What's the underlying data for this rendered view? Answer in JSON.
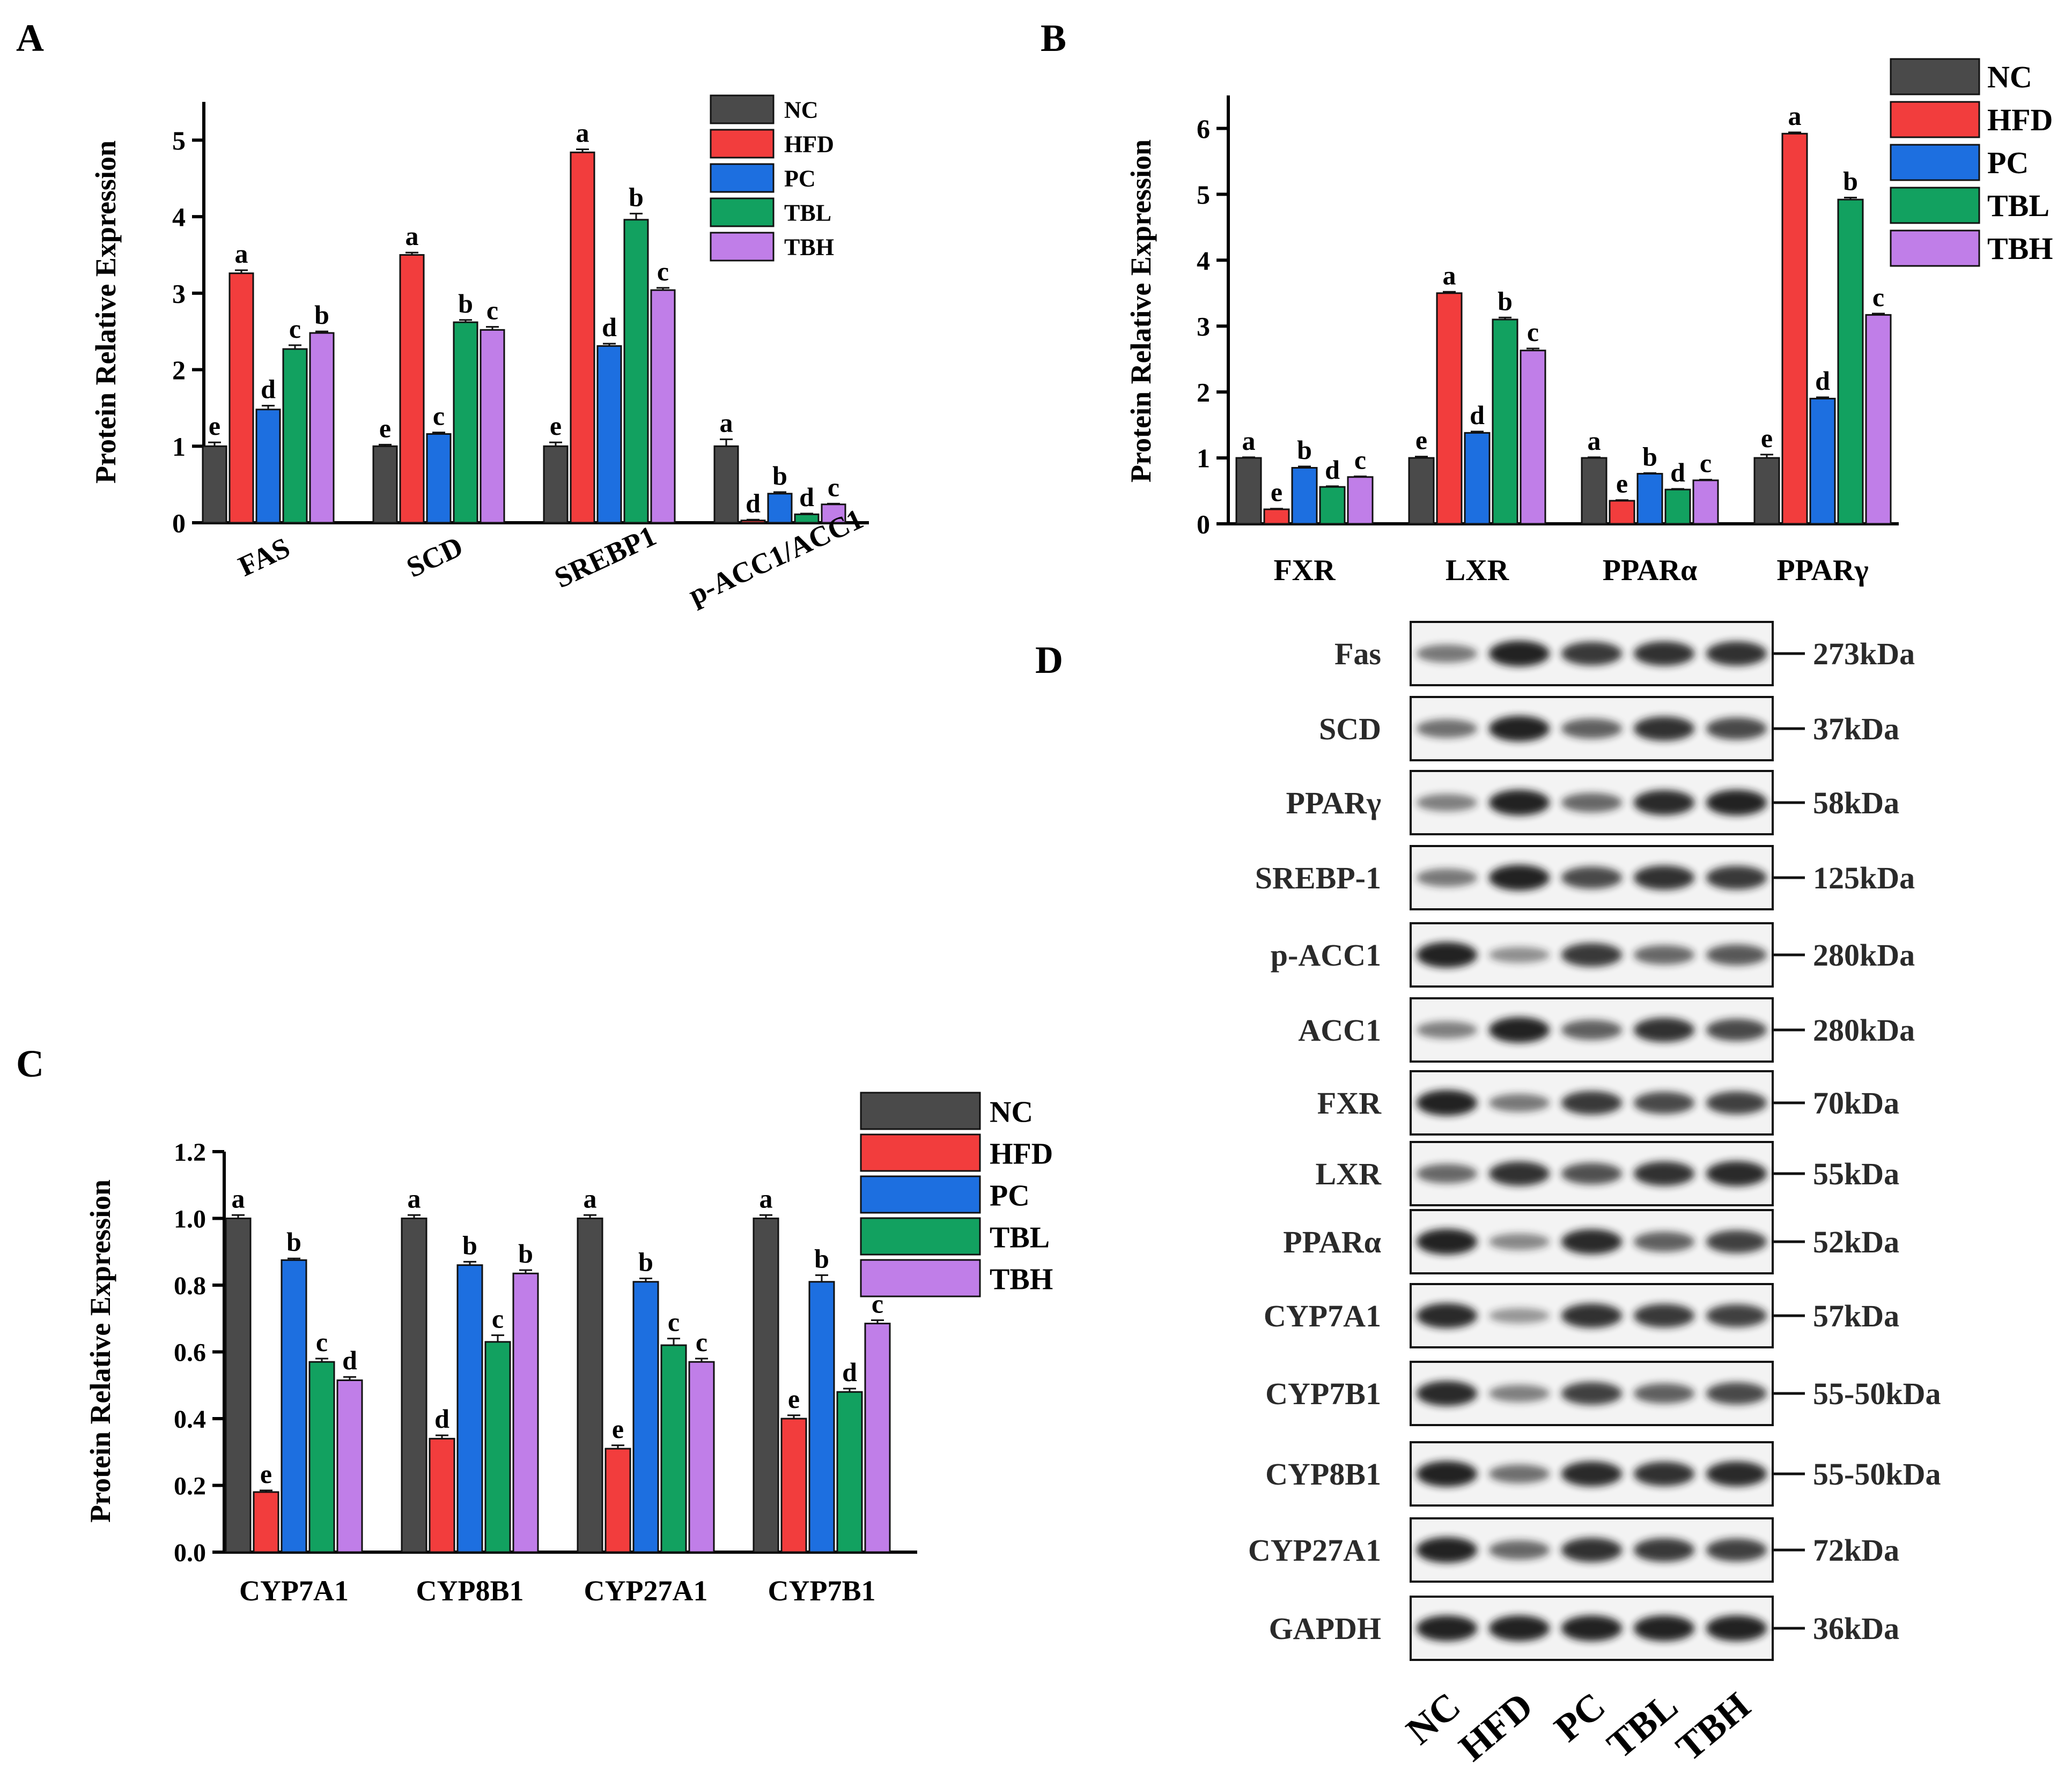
{
  "groups": [
    "NC",
    "HFD",
    "PC",
    "TBL",
    "TBH"
  ],
  "colors": {
    "NC": "#4a4a4a",
    "HFD": "#f23d3d",
    "PC": "#1d6fe0",
    "TBL": "#12a160",
    "TBH": "#c07ee8",
    "axis": "#000000"
  },
  "chart_data": [
    {
      "panel": "A",
      "type": "bar",
      "ylabel": "Protein Relative Expression",
      "ylim": [
        0,
        5.5
      ],
      "yticks": [
        0,
        1,
        2,
        3,
        4,
        5
      ],
      "categories": [
        "FAS",
        "SCD",
        "SREBP1",
        "p-ACC1/ACC1"
      ],
      "series": [
        {
          "name": "NC",
          "values": [
            1.0,
            1.0,
            1.0,
            1.0
          ],
          "errors": [
            0.05,
            0.02,
            0.05,
            0.09
          ],
          "letters": [
            "e",
            "e",
            "e",
            "a"
          ]
        },
        {
          "name": "HFD",
          "values": [
            3.26,
            3.5,
            4.84,
            0.03
          ],
          "errors": [
            0.04,
            0.03,
            0.04,
            0.01
          ],
          "letters": [
            "a",
            "a",
            "a",
            "d"
          ]
        },
        {
          "name": "PC",
          "values": [
            1.48,
            1.16,
            2.31,
            0.38
          ],
          "errors": [
            0.05,
            0.02,
            0.03,
            0.02
          ],
          "letters": [
            "d",
            "c",
            "d",
            "b"
          ]
        },
        {
          "name": "TBL",
          "values": [
            2.27,
            2.62,
            3.96,
            0.11
          ],
          "errors": [
            0.05,
            0.03,
            0.08,
            0.01
          ],
          "letters": [
            "c",
            "b",
            "b",
            "d"
          ]
        },
        {
          "name": "TBH",
          "values": [
            2.48,
            2.52,
            3.04,
            0.24
          ],
          "errors": [
            0.02,
            0.04,
            0.03,
            0.01
          ],
          "letters": [
            "b",
            "c",
            "c",
            "c"
          ]
        }
      ]
    },
    {
      "panel": "B",
      "type": "bar",
      "ylabel": "Protein Relative Expression",
      "ylim": [
        0,
        6.5
      ],
      "yticks": [
        0,
        1,
        2,
        3,
        4,
        5,
        6
      ],
      "categories": [
        "FXR",
        "LXR",
        "PPARα",
        "PPARγ"
      ],
      "series": [
        {
          "name": "NC",
          "values": [
            1.0,
            1.0,
            1.0,
            1.0
          ],
          "errors": [
            0.01,
            0.02,
            0.01,
            0.05
          ],
          "letters": [
            "a",
            "e",
            "a",
            "e"
          ]
        },
        {
          "name": "HFD",
          "values": [
            0.22,
            3.5,
            0.35,
            5.92
          ],
          "errors": [
            0.01,
            0.02,
            0.01,
            0.02
          ],
          "letters": [
            "e",
            "a",
            "e",
            "a"
          ]
        },
        {
          "name": "PC",
          "values": [
            0.85,
            1.38,
            0.76,
            1.9
          ],
          "errors": [
            0.02,
            0.02,
            0.01,
            0.02
          ],
          "letters": [
            "b",
            "d",
            "b",
            "d"
          ]
        },
        {
          "name": "TBL",
          "values": [
            0.56,
            3.1,
            0.52,
            4.92
          ],
          "errors": [
            0.01,
            0.03,
            0.01,
            0.03
          ],
          "letters": [
            "d",
            "b",
            "d",
            "b"
          ]
        },
        {
          "name": "TBH",
          "values": [
            0.71,
            2.63,
            0.66,
            3.17
          ],
          "errors": [
            0.01,
            0.03,
            0.01,
            0.02
          ],
          "letters": [
            "c",
            "c",
            "c",
            "c"
          ]
        }
      ]
    },
    {
      "panel": "C",
      "type": "bar",
      "ylabel": "Protein Relative Expression",
      "ylim": [
        0,
        1.2
      ],
      "yticks": [
        "0.0",
        "0.2",
        "0.4",
        "0.6",
        "0.8",
        "1.0",
        "1.2"
      ],
      "categories": [
        "CYP7A1",
        "CYP8B1",
        "CYP27A1",
        "CYP7B1"
      ],
      "series": [
        {
          "name": "NC",
          "values": [
            1.0,
            1.0,
            1.0,
            1.0
          ],
          "errors": [
            0.01,
            0.01,
            0.01,
            0.01
          ],
          "letters": [
            "a",
            "a",
            "a",
            "a"
          ]
        },
        {
          "name": "HFD",
          "values": [
            0.18,
            0.34,
            0.31,
            0.4
          ],
          "errors": [
            0.005,
            0.01,
            0.01,
            0.01
          ],
          "letters": [
            "e",
            "d",
            "e",
            "e"
          ]
        },
        {
          "name": "PC",
          "values": [
            0.875,
            0.86,
            0.81,
            0.81
          ],
          "errors": [
            0.005,
            0.01,
            0.01,
            0.02
          ],
          "letters": [
            "b",
            "b",
            "b",
            "b"
          ]
        },
        {
          "name": "TBL",
          "values": [
            0.57,
            0.63,
            0.62,
            0.48
          ],
          "errors": [
            0.01,
            0.02,
            0.02,
            0.01
          ],
          "letters": [
            "c",
            "c",
            "c",
            "d"
          ]
        },
        {
          "name": "TBH",
          "values": [
            0.515,
            0.835,
            0.57,
            0.685
          ],
          "errors": [
            0.01,
            0.01,
            0.01,
            0.01
          ],
          "letters": [
            "d",
            "b",
            "c",
            "c"
          ]
        }
      ]
    }
  ],
  "panel_labels": {
    "A": "A",
    "B": "B",
    "C": "C",
    "D": "D"
  },
  "blot": {
    "lanes": [
      "NC",
      "HFD",
      "PC",
      "TBL",
      "TBH"
    ],
    "rows": [
      {
        "protein": "Fas",
        "mw": "273kDa",
        "intensity": [
          0.45,
          1.0,
          0.85,
          0.9,
          0.9
        ]
      },
      {
        "protein": "SCD",
        "mw": "37kDa",
        "intensity": [
          0.5,
          1.0,
          0.6,
          0.9,
          0.75
        ]
      },
      {
        "protein": "PPARγ",
        "mw": "58kDa",
        "intensity": [
          0.4,
          1.0,
          0.55,
          0.95,
          1.0
        ]
      },
      {
        "protein": "SREBP-1",
        "mw": "125kDa",
        "intensity": [
          0.45,
          1.0,
          0.75,
          0.9,
          0.85
        ]
      },
      {
        "protein": "p-ACC1",
        "mw": "280kDa",
        "intensity": [
          1.0,
          0.3,
          0.85,
          0.55,
          0.65
        ]
      },
      {
        "protein": "ACC1",
        "mw": "280kDa",
        "intensity": [
          0.4,
          1.0,
          0.6,
          0.9,
          0.75
        ]
      },
      {
        "protein": "FXR",
        "mw": "70kDa",
        "intensity": [
          1.0,
          0.45,
          0.85,
          0.75,
          0.8
        ]
      },
      {
        "protein": "LXR",
        "mw": "55kDa",
        "intensity": [
          0.55,
          0.9,
          0.7,
          0.9,
          0.95
        ]
      },
      {
        "protein": "PPARα",
        "mw": "52kDa",
        "intensity": [
          1.0,
          0.35,
          0.95,
          0.6,
          0.8
        ]
      },
      {
        "protein": "CYP7A1",
        "mw": "57kDa",
        "intensity": [
          0.95,
          0.25,
          0.9,
          0.85,
          0.8
        ]
      },
      {
        "protein": "CYP7B1",
        "mw": "55-50kDa",
        "intensity": [
          0.95,
          0.4,
          0.8,
          0.6,
          0.75
        ]
      },
      {
        "protein": "CYP8B1",
        "mw": "55-50kDa",
        "intensity": [
          1.0,
          0.5,
          0.95,
          0.9,
          0.95
        ]
      },
      {
        "protein": "CYP27A1",
        "mw": "72kDa",
        "intensity": [
          1.0,
          0.55,
          0.9,
          0.85,
          0.8
        ]
      },
      {
        "protein": "GAPDH",
        "mw": "36kDa",
        "intensity": [
          1.0,
          1.0,
          1.0,
          1.0,
          1.0
        ]
      }
    ]
  }
}
